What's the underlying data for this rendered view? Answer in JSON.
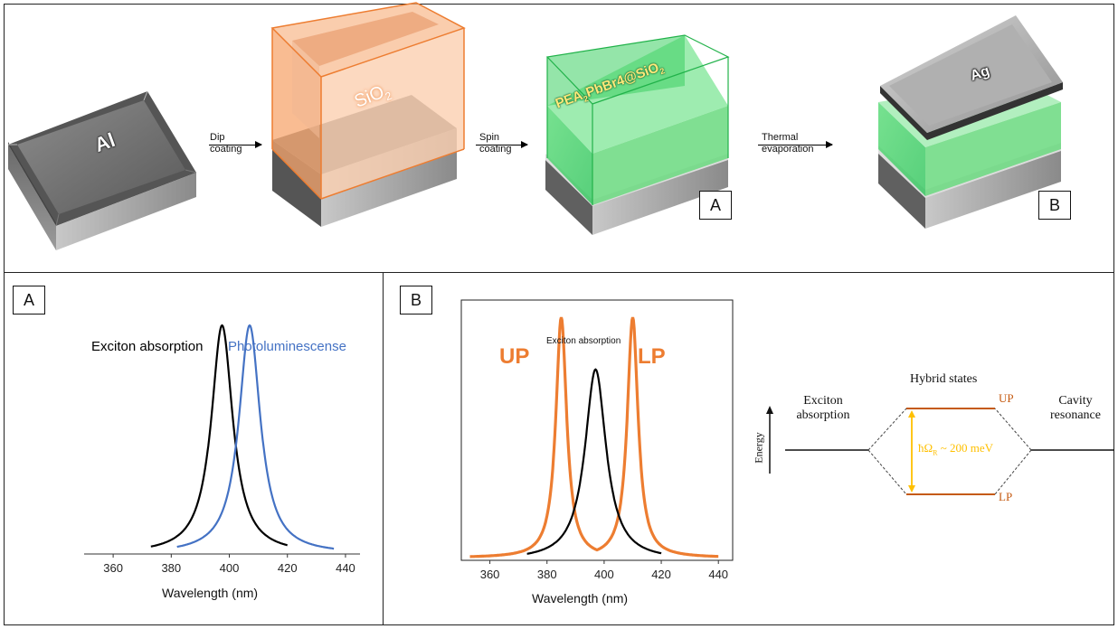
{
  "fabrication": {
    "steps": [
      {
        "label_line1": "Dip",
        "label_line2": "coating"
      },
      {
        "label_line1": "Spin",
        "label_line2": "coating"
      },
      {
        "label_line1": "Thermal",
        "label_line2": "evaporation"
      }
    ],
    "block_labels": {
      "al": "Al",
      "sio2": "SiO",
      "sio2_sub": "2",
      "perovskite": "PEA",
      "perovskite_sub": "2",
      "perovskite_rest": "PbBr4@SiO",
      "perovskite_sub2": "2",
      "ag": "Ag"
    },
    "callouts": [
      "A",
      "B"
    ]
  },
  "panel_a": {
    "label": "A",
    "chart_data": {
      "type": "line",
      "xlabel": "Wavelength (nm)",
      "ylabel": "",
      "xlim": [
        350,
        445
      ],
      "ylim": [
        0,
        1.05
      ],
      "x_ticks": [
        360,
        380,
        400,
        420,
        440
      ],
      "series": [
        {
          "name": "Exciton absorption",
          "color": "#000000",
          "peak": 397.5,
          "width": 4.5,
          "x_range": [
            373,
            420
          ]
        },
        {
          "name": "Photoluminescense",
          "color": "#4472c4",
          "peak": 407,
          "width": 4.5,
          "x_range": [
            382,
            436
          ]
        }
      ]
    }
  },
  "panel_b": {
    "label": "B",
    "chart_data": {
      "type": "line",
      "xlabel": "Wavelength (nm)",
      "ylabel": "",
      "xlim": [
        350,
        445
      ],
      "ylim": [
        0,
        1.05
      ],
      "x_ticks": [
        360,
        380,
        400,
        420,
        440
      ],
      "annotations": [
        "UP",
        "LP",
        "Exciton absorption"
      ],
      "series": [
        {
          "name": "UP / LP",
          "color": "#ed7d31",
          "peaks": [
            385,
            410
          ],
          "width": 2.3,
          "x_range": [
            353,
            440
          ]
        },
        {
          "name": "Exciton absorption",
          "color": "#000000",
          "peak": 397,
          "width": 4.5,
          "x_range": [
            373,
            420
          ]
        }
      ]
    },
    "diagram": {
      "hybrid_states": "Hybrid states",
      "exciton_line1": "Exciton",
      "exciton_line2": "absorption",
      "cavity_line1": "Cavity",
      "cavity_line2": "resonance",
      "up": "UP",
      "lp": "LP",
      "energy": "Energy",
      "rabi_prefix": "ħΩ",
      "rabi_sub": "R",
      "rabi_suffix": " ~ 200 meV",
      "colors": {
        "level": "#c55a11",
        "rabi_arrow": "#ffc000",
        "label": "#c55a11"
      }
    }
  }
}
